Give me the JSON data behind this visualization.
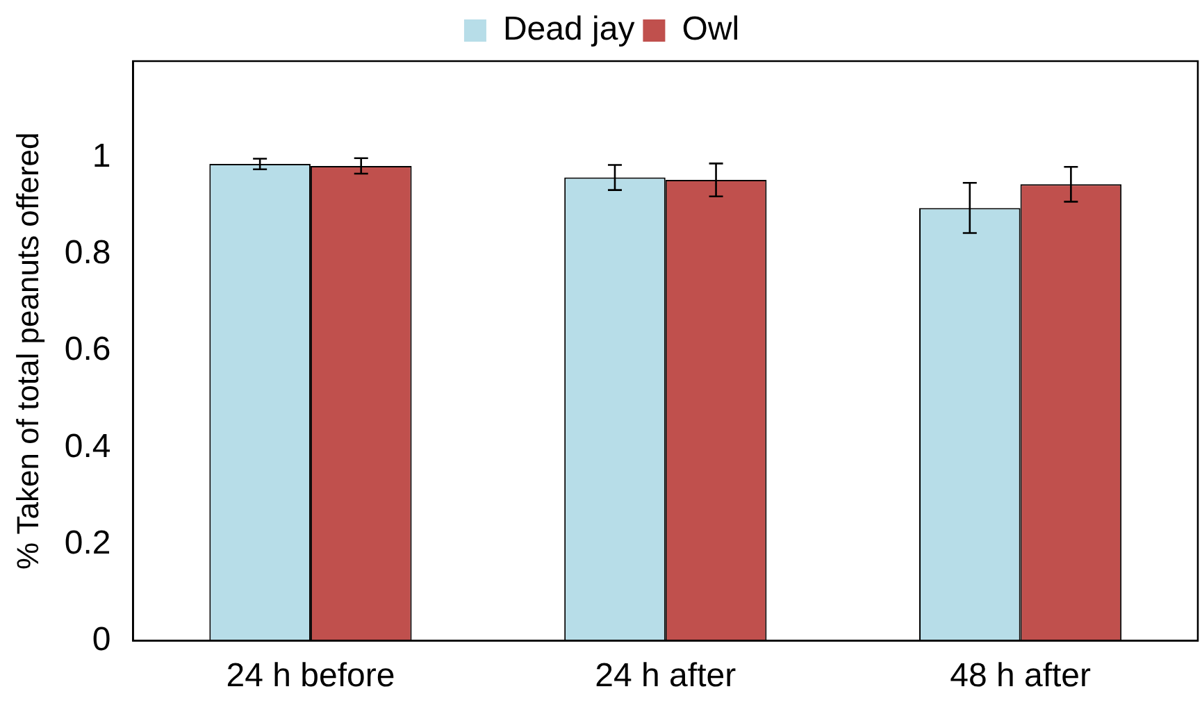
{
  "chart_data": {
    "type": "bar",
    "ylabel": "% Taken of total peanuts offered",
    "categories": [
      "24 h before",
      "24 h after",
      "48 h after"
    ],
    "series": [
      {
        "name": "Dead jay",
        "color": "#b7dde8",
        "values": [
          0.987,
          0.959,
          0.896
        ],
        "errors": [
          0.011,
          0.026,
          0.052
        ]
      },
      {
        "name": "Owl",
        "color": "#c0504d",
        "values": [
          0.983,
          0.954,
          0.945
        ],
        "errors": [
          0.016,
          0.034,
          0.036
        ]
      }
    ],
    "ylim": [
      0,
      1.2
    ],
    "yticks": [
      0,
      0.2,
      0.4,
      0.6,
      0.8,
      1
    ],
    "grid": false,
    "legend": "top"
  }
}
